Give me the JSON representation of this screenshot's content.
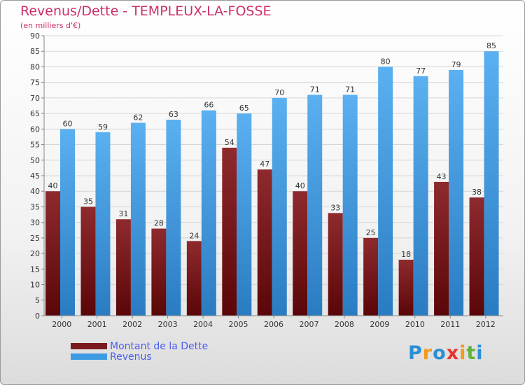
{
  "header": {
    "title": "Revenus/Dette - TEMPLEUX-LA-FOSSE",
    "subtitle": "(en milliers d'€)"
  },
  "chart_data": {
    "type": "bar",
    "categories": [
      "2000",
      "2001",
      "2002",
      "2003",
      "2004",
      "2005",
      "2006",
      "2007",
      "2008",
      "2009",
      "2010",
      "2011",
      "2012"
    ],
    "series": [
      {
        "name": "Montant de la Dette",
        "color": "#7b1a1e",
        "values": [
          40,
          35,
          31,
          28,
          24,
          54,
          47,
          40,
          33,
          25,
          18,
          43,
          38
        ]
      },
      {
        "name": "Revenus",
        "color": "#3d9be3",
        "values": [
          60,
          59,
          62,
          63,
          66,
          65,
          70,
          71,
          71,
          80,
          77,
          79,
          85
        ]
      }
    ],
    "ylim": [
      0,
      90
    ],
    "ytick_step": 5,
    "grid": true,
    "legend_position": "bottom-left",
    "data_labels": true
  },
  "legend": {
    "items": [
      {
        "label": "Montant de la Dette",
        "color": "#7b1a1e"
      },
      {
        "label": "Revenus",
        "color": "#3d9be3"
      }
    ]
  },
  "logo": {
    "text": "Proxiti",
    "letters": [
      "P",
      "r",
      "o",
      "x",
      "i",
      "t",
      "i"
    ],
    "colors": [
      "#2a8fd6",
      "#f39a1a",
      "#2a8fd6",
      "#e8322f",
      "#f39a1a",
      "#62b33a",
      "#2a8fd6"
    ]
  }
}
